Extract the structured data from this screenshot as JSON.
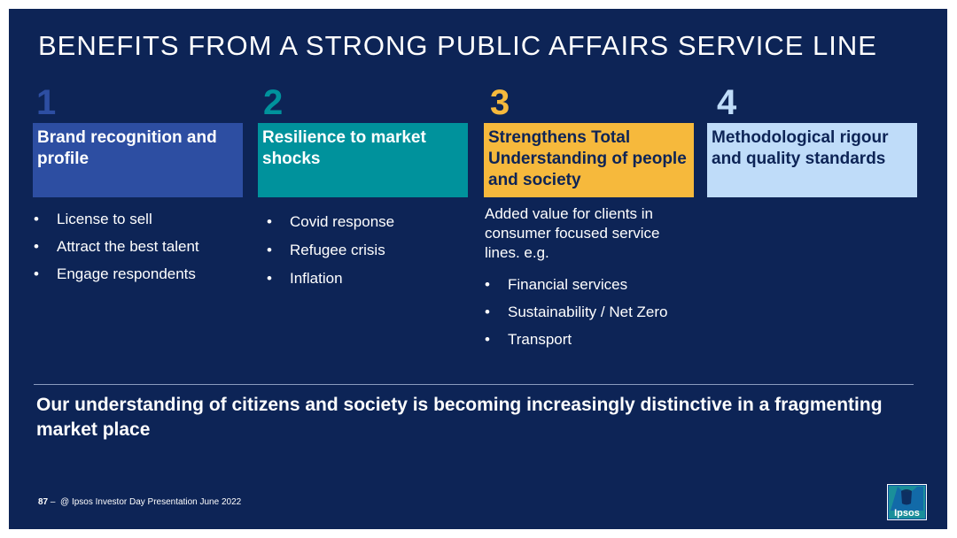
{
  "title": "BENEFITS FROM A STRONG PUBLIC AFFAIRS SERVICE LINE",
  "colors": {
    "background": "#0d2456",
    "col1": "#2d4ea2",
    "col2": "#00929c",
    "col3": "#f6b93c",
    "col4": "#bfdcf9"
  },
  "columns": [
    {
      "number": "1",
      "heading": "Brand recognition and profile",
      "bullets": [
        "License to sell",
        "Attract the best talent",
        "Engage respondents"
      ]
    },
    {
      "number": "2",
      "heading": "Resilience to market shocks",
      "bullets": [
        "Covid response",
        "Refugee crisis",
        "Inflation"
      ]
    },
    {
      "number": "3",
      "heading": "Strengthens Total Understanding of people and society",
      "intro": "Added value for clients in consumer focused service lines. e.g.",
      "bullets": [
        "Financial services",
        "Sustainability / Net Zero",
        "Transport"
      ]
    },
    {
      "number": "4",
      "heading": "Methodological rigour and quality standards"
    }
  ],
  "bullet_glyph": "•",
  "tagline": "Our understanding of citizens and society is becoming increasingly distinctive in a fragmenting market place",
  "footer": {
    "page": "87",
    "dash": "–",
    "text": "@ Ipsos Investor Day Presentation June 2022"
  },
  "logo": {
    "text": "Ipsos",
    "icon": "ipsos-logo"
  }
}
